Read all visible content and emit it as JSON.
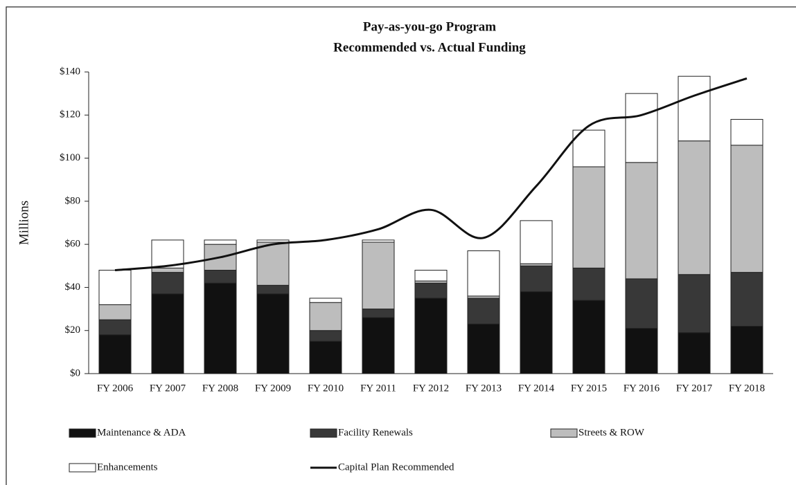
{
  "chart_data": {
    "type": "bar",
    "stacked": true,
    "title": "Pay-as-you-go Program",
    "subtitle": "Recommended vs. Actual Funding",
    "y_label": "Millions",
    "categories": [
      "FY 2006",
      "FY 2007",
      "FY 2008",
      "FY 2009",
      "FY 2010",
      "FY 2011",
      "FY 2012",
      "FY 2013",
      "FY 2014",
      "FY 2015",
      "FY 2016",
      "FY 2017",
      "FY 2018"
    ],
    "series": [
      {
        "name": "Maintenance & ADA",
        "type": "bar",
        "color": "#111111",
        "values": [
          18,
          37,
          42,
          37,
          15,
          26,
          35,
          23,
          38,
          34,
          21,
          19,
          22
        ]
      },
      {
        "name": "Facility Renewals",
        "type": "bar",
        "color": "#383838",
        "values": [
          7,
          10,
          6,
          4,
          5,
          4,
          7,
          12,
          12,
          15,
          23,
          27,
          25
        ]
      },
      {
        "name": "Streets & ROW",
        "type": "bar",
        "color": "#bdbdbd",
        "values": [
          7,
          2,
          12,
          20,
          13,
          31,
          1,
          1,
          1,
          47,
          54,
          62,
          59
        ]
      },
      {
        "name": "Enhancements",
        "type": "bar",
        "color": "#ffffff",
        "values": [
          16,
          13,
          2,
          1,
          2,
          1,
          5,
          21,
          20,
          17,
          32,
          30,
          12
        ]
      },
      {
        "name": "Capital Plan Recommended",
        "type": "line",
        "color": "#111111",
        "values": [
          48,
          50,
          54,
          60,
          62,
          67,
          76,
          63,
          87,
          115,
          120,
          129,
          137
        ]
      }
    ],
    "ylim": [
      0,
      140
    ],
    "yticks": [
      {
        "value": 0,
        "label": "$0"
      },
      {
        "value": 20,
        "label": "$20"
      },
      {
        "value": 40,
        "label": "$40"
      },
      {
        "value": 60,
        "label": "$60"
      },
      {
        "value": 80,
        "label": "$80"
      },
      {
        "value": 100,
        "label": "$100"
      },
      {
        "value": 120,
        "label": "$120"
      },
      {
        "value": 140,
        "label": "$140"
      }
    ]
  }
}
